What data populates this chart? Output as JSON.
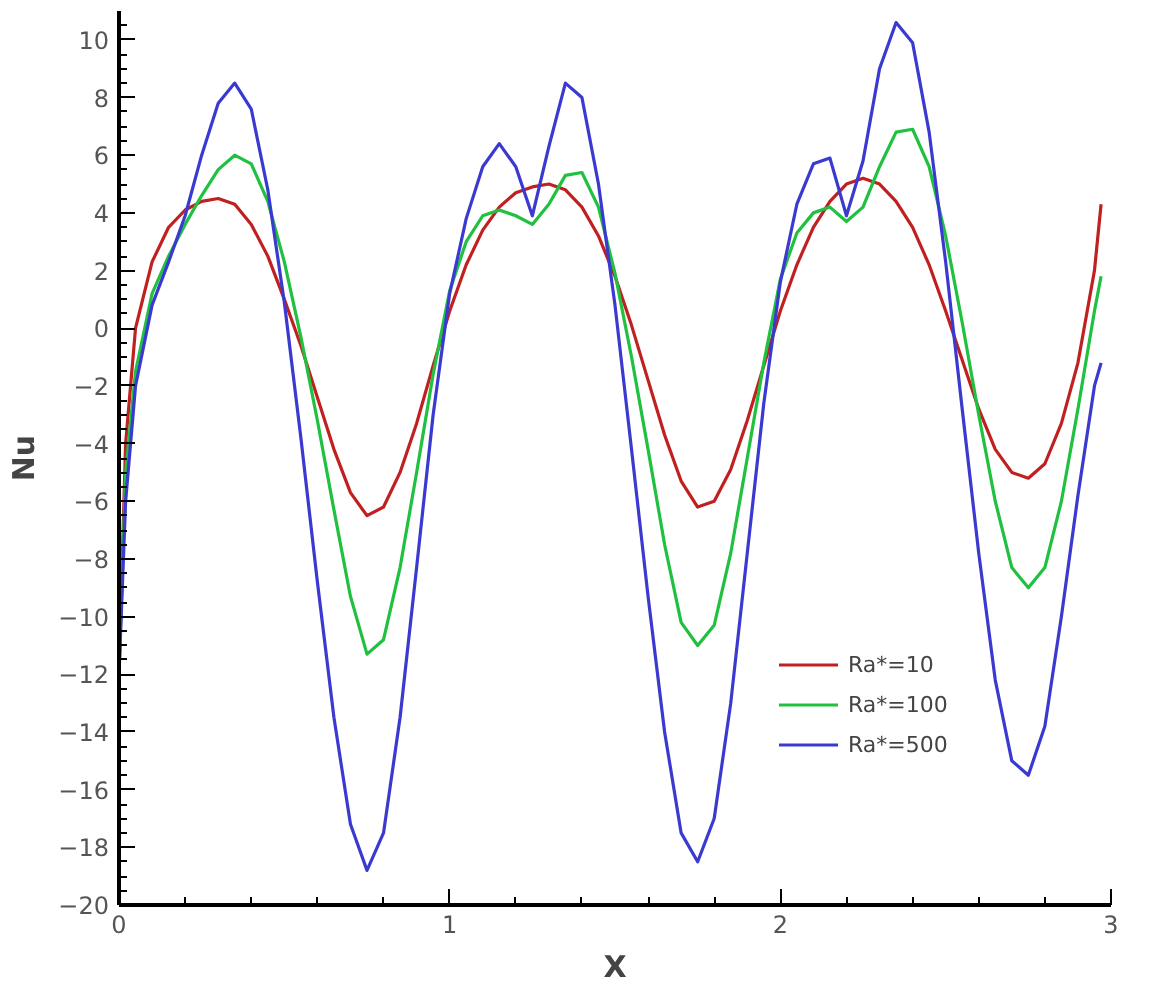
{
  "chart_data": {
    "type": "line",
    "xlabel": "X",
    "ylabel": "Nu",
    "x": [
      0,
      0.02,
      0.05,
      0.1,
      0.15,
      0.2,
      0.25,
      0.3,
      0.35,
      0.4,
      0.45,
      0.5,
      0.55,
      0.6,
      0.65,
      0.7,
      0.75,
      0.8,
      0.85,
      0.9,
      0.95,
      1.0,
      1.05,
      1.1,
      1.15,
      1.2,
      1.25,
      1.3,
      1.35,
      1.4,
      1.45,
      1.5,
      1.55,
      1.6,
      1.65,
      1.7,
      1.75,
      1.8,
      1.85,
      1.9,
      1.95,
      2.0,
      2.05,
      2.1,
      2.15,
      2.2,
      2.25,
      2.3,
      2.35,
      2.4,
      2.45,
      2.5,
      2.55,
      2.6,
      2.65,
      2.7,
      2.75,
      2.8,
      2.85,
      2.9,
      2.95,
      2.97
    ],
    "series": [
      {
        "name": "Ra*=10",
        "color": "#c02020",
        "values": [
          -12,
          -4,
          0,
          2.3,
          3.5,
          4.1,
          4.4,
          4.5,
          4.3,
          3.6,
          2.5,
          1.0,
          -0.6,
          -2.4,
          -4.2,
          -5.7,
          -6.5,
          -6.2,
          -5.0,
          -3.3,
          -1.3,
          0.6,
          2.2,
          3.4,
          4.2,
          4.7,
          4.9,
          5.0,
          4.8,
          4.2,
          3.2,
          1.8,
          0.1,
          -1.8,
          -3.7,
          -5.3,
          -6.2,
          -6.0,
          -4.9,
          -3.2,
          -1.3,
          0.6,
          2.2,
          3.5,
          4.4,
          5.0,
          5.2,
          5.0,
          4.4,
          3.5,
          2.2,
          0.6,
          -1.1,
          -2.8,
          -4.2,
          -5.0,
          -5.2,
          -4.7,
          -3.3,
          -1.2,
          2.0,
          4.3
        ]
      },
      {
        "name": "Ra*=100",
        "color": "#20c040",
        "values": [
          -12,
          -5,
          -1.5,
          1.2,
          2.5,
          3.6,
          4.6,
          5.5,
          6.0,
          5.7,
          4.4,
          2.3,
          -0.3,
          -3.2,
          -6.3,
          -9.3,
          -11.3,
          -10.8,
          -8.3,
          -5.0,
          -1.6,
          1.3,
          3.0,
          3.9,
          4.1,
          3.9,
          3.6,
          4.3,
          5.3,
          5.4,
          4.2,
          1.9,
          -1.0,
          -4.2,
          -7.5,
          -10.2,
          -11.0,
          -10.3,
          -7.8,
          -4.5,
          -1.2,
          1.7,
          3.3,
          4.0,
          4.2,
          3.7,
          4.2,
          5.6,
          6.8,
          6.9,
          5.6,
          3.2,
          0.2,
          -3.0,
          -6.0,
          -8.3,
          -9.0,
          -8.3,
          -6.0,
          -2.8,
          0.6,
          1.8
        ]
      },
      {
        "name": "Ra*=500",
        "color": "#3a3ad0",
        "values": [
          -12,
          -6,
          -2,
          0.8,
          2.3,
          3.9,
          6.0,
          7.8,
          8.5,
          7.6,
          4.8,
          0.9,
          -3.8,
          -8.8,
          -13.5,
          -17.2,
          -18.8,
          -17.5,
          -13.5,
          -8.3,
          -3.0,
          1.2,
          3.8,
          5.6,
          6.4,
          5.6,
          3.9,
          6.3,
          8.5,
          8.0,
          5.0,
          0.8,
          -4.2,
          -9.3,
          -14.0,
          -17.5,
          -18.5,
          -17.0,
          -13.0,
          -7.8,
          -2.6,
          1.6,
          4.3,
          5.7,
          5.9,
          3.9,
          5.8,
          9.0,
          10.6,
          9.9,
          6.8,
          2.3,
          -2.8,
          -7.8,
          -12.2,
          -15.0,
          -15.5,
          -13.8,
          -10.0,
          -5.8,
          -2.0,
          -1.2
        ]
      }
    ],
    "xlim": [
      0,
      3
    ],
    "ylim": [
      -20,
      11
    ],
    "xticks": [
      0,
      1,
      2,
      3
    ],
    "yticks": [
      -20,
      -18,
      -16,
      -14,
      -12,
      -10,
      -8,
      -6,
      -4,
      -2,
      0,
      2,
      4,
      6,
      8,
      10
    ],
    "grid": false,
    "legend": "bottom right",
    "marker": "none",
    "line_style": "solid"
  }
}
